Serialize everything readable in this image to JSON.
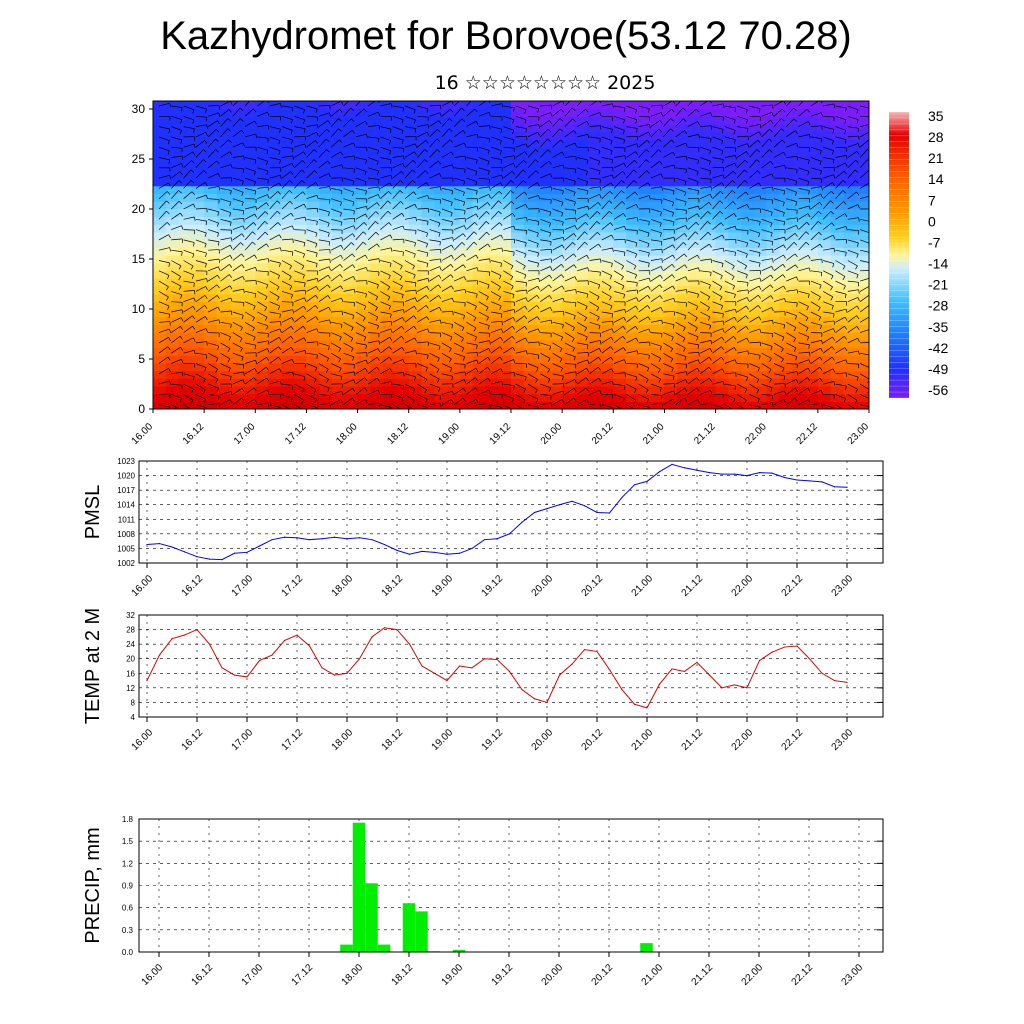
{
  "header": {
    "title": "Kazhydromet for Borovoe(53.12 70.28)",
    "subtitle": "16 ☆☆☆☆☆☆☆☆ 2025"
  },
  "chart_data": [
    {
      "type": "heatmap",
      "title": "",
      "xlabel": "",
      "ylabel": "",
      "x_tick_labels": [
        "16.00",
        "16.12",
        "17.00",
        "17.12",
        "18.00",
        "18.12",
        "19.00",
        "19.12",
        "20.00",
        "20.12",
        "21.00",
        "21.12",
        "22.00",
        "22.12",
        "23.00"
      ],
      "y_tick_labels": [
        "0",
        "5",
        "10",
        "15",
        "20",
        "25",
        "30"
      ],
      "ylim": [
        0,
        30.8
      ],
      "colorbar": {
        "labels": [
          "35",
          "28",
          "21",
          "14",
          "7",
          "0",
          "-7",
          "-14",
          "-21",
          "-28",
          "-35",
          "-42",
          "-49",
          "-56"
        ],
        "colors_top_to_bottom": [
          "#f2a0a0",
          "#e60000",
          "#ff5a00",
          "#ff9a00",
          "#ffd020",
          "#fff59a",
          "#c9ecff",
          "#40c0ff",
          "#1e7cff",
          "#2030ff",
          "#7c1cff"
        ]
      },
      "overlay": "wind barbs"
    },
    {
      "type": "line",
      "ylabel": "PMSL",
      "ylim": [
        1002,
        1023
      ],
      "y_ticks": [
        "1002",
        "1005",
        "1008",
        "1011",
        "1014",
        "1017",
        "1020",
        "1023"
      ],
      "x_tick_labels": [
        "16.00",
        "16.12",
        "17.00",
        "17.12",
        "18.00",
        "18.12",
        "19.00",
        "19.12",
        "20.00",
        "20.12",
        "21.00",
        "21.12",
        "22.00",
        "22.12",
        "23.00"
      ],
      "line_color": "#0000ff",
      "x_hours": [
        0,
        3,
        6,
        9,
        12,
        15,
        18,
        21,
        24,
        27,
        30,
        33,
        36,
        39,
        42,
        45,
        48,
        51,
        54,
        57,
        60,
        63,
        66,
        69,
        72,
        75,
        78,
        81,
        84,
        87,
        90,
        93,
        96,
        99,
        102,
        105,
        108,
        111,
        114,
        117,
        120,
        123,
        126,
        129,
        132,
        135,
        138,
        141,
        144,
        147,
        150,
        153,
        156,
        159,
        162,
        165,
        168
      ],
      "values": [
        1005.8,
        1006.0,
        1005.3,
        1004.3,
        1003.3,
        1002.8,
        1002.7,
        1004.0,
        1004.2,
        1005.5,
        1006.8,
        1007.3,
        1007.2,
        1006.8,
        1007.0,
        1007.3,
        1007.0,
        1007.2,
        1006.8,
        1005.8,
        1004.6,
        1003.8,
        1004.4,
        1004.2,
        1003.8,
        1004.0,
        1005.0,
        1006.8,
        1007.0,
        1008.0,
        1010.4,
        1012.4,
        1013.2,
        1014.0,
        1014.7,
        1013.8,
        1012.4,
        1012.3,
        1015.5,
        1018.1,
        1018.8,
        1020.8,
        1022.3,
        1021.6,
        1021.1,
        1020.6,
        1020.3,
        1020.3,
        1020.0,
        1020.6,
        1020.5,
        1019.6,
        1019.1,
        1018.9,
        1018.7,
        1017.7,
        1017.6
      ]
    },
    {
      "type": "line",
      "ylabel": "TEMP at 2 M",
      "ylim": [
        4,
        32
      ],
      "y_ticks": [
        "4",
        "8",
        "12",
        "16",
        "20",
        "24",
        "28",
        "32"
      ],
      "x_tick_labels": [
        "16.00",
        "16.12",
        "17.00",
        "17.12",
        "18.00",
        "18.12",
        "19.00",
        "19.12",
        "20.00",
        "20.12",
        "21.00",
        "21.12",
        "22.00",
        "22.12",
        "23.00"
      ],
      "line_color": "#e00000",
      "x_hours": [
        0,
        3,
        6,
        9,
        12,
        15,
        18,
        21,
        24,
        27,
        30,
        33,
        36,
        39,
        42,
        45,
        48,
        51,
        54,
        57,
        60,
        63,
        66,
        69,
        72,
        75,
        78,
        81,
        84,
        87,
        90,
        93,
        96,
        99,
        102,
        105,
        108,
        111,
        114,
        117,
        120,
        123,
        126,
        129,
        132,
        135,
        138,
        141,
        144,
        147,
        150,
        153,
        156,
        159,
        162,
        165,
        168
      ],
      "values": [
        14.0,
        21.0,
        25.5,
        26.5,
        28.0,
        24.0,
        17.5,
        15.5,
        15.0,
        19.5,
        21.0,
        25.0,
        26.5,
        23.5,
        17.5,
        15.5,
        16.0,
        20.0,
        26.0,
        28.5,
        28.0,
        24.0,
        18.0,
        16.0,
        14.0,
        18.0,
        17.5,
        20.0,
        19.8,
        16.5,
        11.5,
        9.0,
        8.0,
        15.5,
        18.5,
        22.5,
        22.0,
        17.0,
        11.5,
        7.5,
        6.5,
        13.0,
        17.2,
        16.5,
        19.0,
        15.5,
        12.0,
        12.8,
        12.0,
        19.5,
        21.8,
        23.2,
        23.5,
        20.0,
        16.0,
        14.0,
        13.5
      ]
    },
    {
      "type": "bar",
      "ylabel": "PRECIP, mm",
      "ylim": [
        0,
        1.8
      ],
      "y_ticks": [
        "0.0",
        "0.3",
        "0.6",
        "0.9",
        "1.2",
        "1.5",
        "1.8"
      ],
      "x_tick_labels": [
        "16.00",
        "16.12",
        "17.00",
        "17.12",
        "18.00",
        "18.12",
        "19.00",
        "19.12",
        "20.00",
        "20.12",
        "21.00",
        "21.12",
        "22.00",
        "22.12",
        "23.00"
      ],
      "bar_color": "#00ee00",
      "x_hours": [
        45,
        48,
        51,
        54,
        60,
        63,
        66,
        72,
        117
      ],
      "values": [
        0.1,
        1.75,
        0.93,
        0.1,
        0.66,
        0.55,
        0.01,
        0.03,
        0.12
      ]
    }
  ]
}
